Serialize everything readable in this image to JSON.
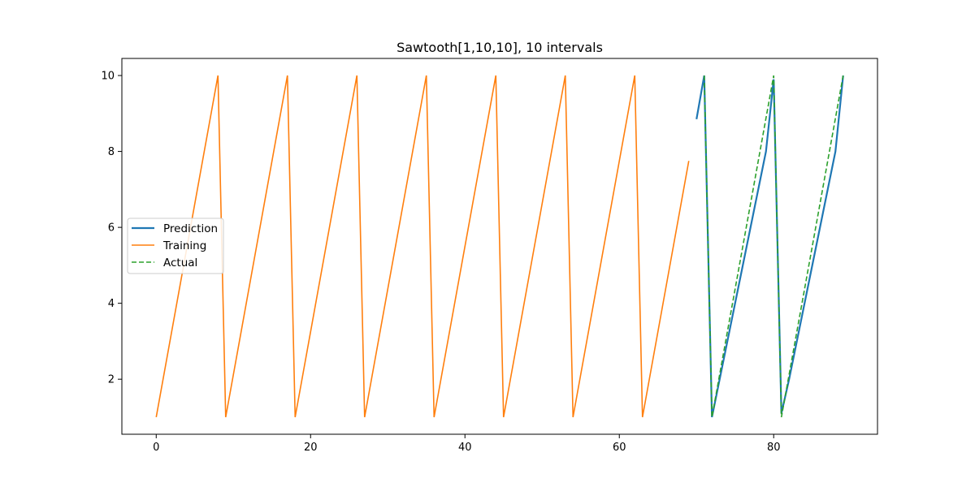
{
  "chart_data": {
    "type": "line",
    "title": "Sawtooth[1,10,10], 10 intervals",
    "xlabel": "",
    "ylabel": "",
    "xlim": [
      -4.45,
      93.45
    ],
    "ylim": [
      0.55,
      10.45
    ],
    "xticks": [
      0,
      20,
      40,
      60,
      80
    ],
    "yticks": [
      2,
      4,
      6,
      8,
      10
    ],
    "grid": false,
    "legend_position": "center-left",
    "series": [
      {
        "name": "Prediction",
        "color": "#1f77b4",
        "style": "solid",
        "x": [
          70,
          71,
          72,
          73,
          74,
          75,
          76,
          77,
          78,
          79,
          80,
          81,
          82,
          83,
          84,
          85,
          86,
          87,
          88,
          89
        ],
        "y": [
          8.85,
          10,
          1,
          2,
          3,
          4,
          5,
          6,
          7,
          8,
          9.9,
          1.1,
          2,
          3,
          4,
          5,
          6,
          7,
          8,
          10
        ]
      },
      {
        "name": "Training",
        "color": "#ff7f0e",
        "style": "solid",
        "x": [
          0,
          8,
          9,
          17,
          18,
          26,
          27,
          35,
          36,
          44,
          45,
          53,
          54,
          62,
          63,
          69
        ],
        "y": [
          1,
          10,
          1,
          10,
          1,
          10,
          1,
          10,
          1,
          10,
          1,
          10,
          1,
          10,
          1,
          7.75
        ]
      },
      {
        "name": "Actual",
        "color": "#2ca02c",
        "style": "dashed",
        "x": [
          71,
          72,
          80,
          81,
          89
        ],
        "y": [
          10,
          1,
          10,
          1,
          10
        ]
      }
    ]
  }
}
